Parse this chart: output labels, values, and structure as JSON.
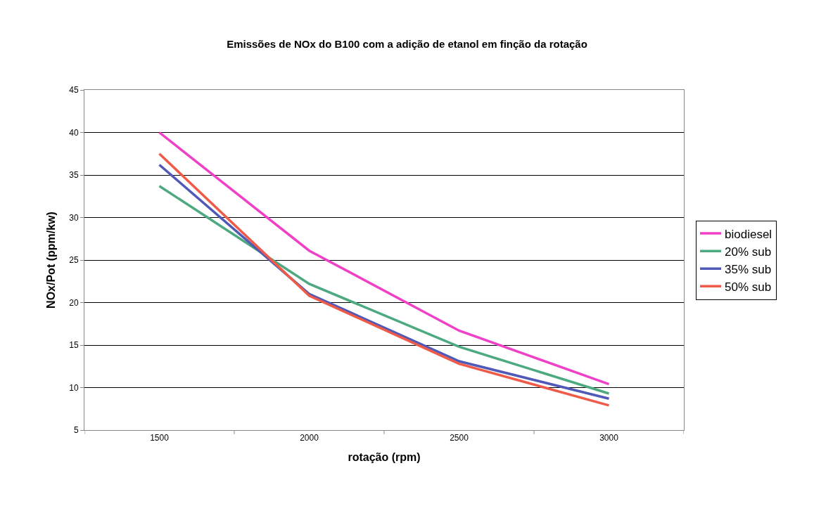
{
  "chart_data": {
    "type": "line",
    "title": "Emissões de NOx do B100 com a adição de etanol em finção da rotação",
    "xlabel": "rotação (rpm)",
    "ylabel": "NOx/Pot (ppm/kw)",
    "categories": [
      "1500",
      "2000",
      "2500",
      "3000"
    ],
    "series": [
      {
        "name": "biodiesel",
        "color": "#f040c8",
        "values": [
          40.0,
          26.1,
          16.7,
          10.4
        ]
      },
      {
        "name": "20% sub",
        "color": "#4daa80",
        "values": [
          33.7,
          22.2,
          14.8,
          9.3
        ]
      },
      {
        "name": "35% sub",
        "color": "#5058b8",
        "values": [
          36.2,
          21.0,
          13.1,
          8.7
        ]
      },
      {
        "name": "50% sub",
        "color": "#f05a48",
        "values": [
          37.5,
          20.8,
          12.8,
          7.9
        ]
      }
    ],
    "ylim": [
      5,
      45
    ],
    "yticks": [
      5,
      10,
      15,
      20,
      25,
      30,
      35,
      40,
      45
    ],
    "grid": "y",
    "legend": "right",
    "marker": "none",
    "line_style": "solid"
  }
}
